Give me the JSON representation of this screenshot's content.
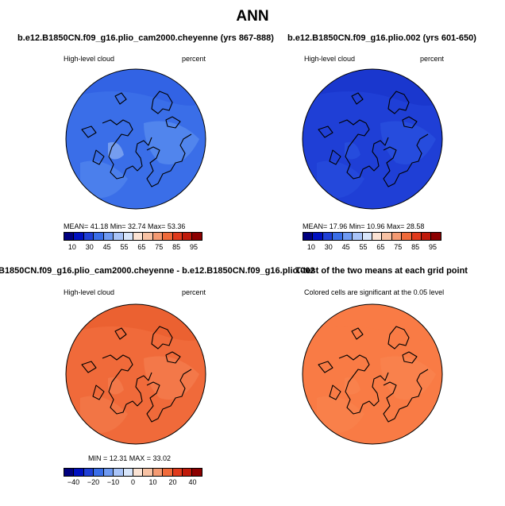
{
  "title": "ANN",
  "panels": [
    {
      "title": "b.e12.B1850CN.f09_g16.plio_cam2000.cheyenne (yrs 867-888)",
      "left_label": "High-level cloud",
      "right_label": "percent",
      "stats": "MEAN=   41.18   Min=    32.74   Max=   53.36",
      "base_color": "#3a6ee8"
    },
    {
      "title": "b.e12.B1850CN.f09_g16.plio.002 (yrs 601-650)",
      "left_label": "High-level cloud",
      "right_label": "percent",
      "stats": "MEAN=   17.96   Min=    10.96   Max=   28.58",
      "base_color": "#1f3fd6"
    },
    {
      "title": "B1850CN.f09_g16.plio_cam2000.cheyenne - b.e12.B1850CN.f09_g16.plio.002",
      "left_label": "High-level cloud",
      "right_label": "percent",
      "stats": "MIN =   12.31  MAX =   33.02",
      "base_color": "#f06a3a"
    },
    {
      "title": "T-test of the two means at each grid point",
      "left_label": "Colored cells are significant at the 0.05 level",
      "right_label": "",
      "stats": "",
      "base_color": "#f97b45"
    }
  ],
  "colorbar_abs": {
    "colors": [
      "#00007f",
      "#0010c0",
      "#1f3fd6",
      "#3a6ee8",
      "#6f9af2",
      "#a9c4f8",
      "#d8e6fb",
      "#fbe3d4",
      "#f8c2a4",
      "#f49a72",
      "#f06a3a",
      "#e03a1c",
      "#c01a0a",
      "#8c0000"
    ],
    "ticks": [
      "10",
      "30",
      "45",
      "55",
      "65",
      "75",
      "85",
      "95"
    ]
  },
  "colorbar_diff": {
    "colors": [
      "#00007f",
      "#0010c0",
      "#1f3fd6",
      "#3a6ee8",
      "#6f9af2",
      "#a9c4f8",
      "#d8e6fb",
      "#fbe3d4",
      "#f8c2a4",
      "#f49a72",
      "#f06a3a",
      "#e03a1c",
      "#c01a0a",
      "#8c0000"
    ],
    "ticks": [
      "−40",
      "−20",
      "−10",
      "0",
      "10",
      "20",
      "40"
    ]
  }
}
